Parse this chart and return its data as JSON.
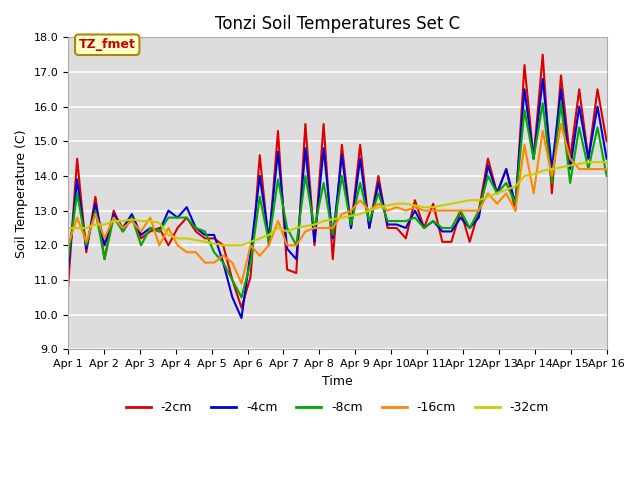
{
  "title": "Tonzi Soil Temperatures Set C",
  "xlabel": "Time",
  "ylabel": "Soil Temperature (C)",
  "ylim": [
    9.0,
    18.0
  ],
  "yticks": [
    9.0,
    10.0,
    11.0,
    12.0,
    13.0,
    14.0,
    15.0,
    16.0,
    17.0,
    18.0
  ],
  "xtick_labels": [
    "Apr 1",
    "Apr 2",
    "Apr 3",
    "Apr 4",
    "Apr 5",
    "Apr 6",
    "Apr 7",
    "Apr 8",
    "Apr 9",
    "Apr 10",
    "Apr 11",
    "Apr 12",
    "Apr 13",
    "Apr 14",
    "Apr 15",
    "Apr 16"
  ],
  "annotation_text": "TZ_fmet",
  "annotation_color": "#cc0000",
  "annotation_bg": "#ffffcc",
  "annotation_border": "#aa8800",
  "series_names": [
    "-2cm",
    "-4cm",
    "-8cm",
    "-16cm",
    "-32cm"
  ],
  "series_colors": [
    "#dd0000",
    "#0000dd",
    "#00aa00",
    "#ff8800",
    "#cccc00"
  ],
  "cm2": [
    10.8,
    14.5,
    11.8,
    13.4,
    11.6,
    13.0,
    12.4,
    12.8,
    12.2,
    12.4,
    12.5,
    12.0,
    12.5,
    12.8,
    12.4,
    12.2,
    12.2,
    12.0,
    11.0,
    10.2,
    11.1,
    14.6,
    12.0,
    15.3,
    11.3,
    11.2,
    15.5,
    12.0,
    15.5,
    11.6,
    14.9,
    12.5,
    14.9,
    12.5,
    14.0,
    12.5,
    12.5,
    12.2,
    13.3,
    12.5,
    13.2,
    12.1,
    12.1,
    13.0,
    12.1,
    13.0,
    14.5,
    13.5,
    14.2,
    13.0,
    17.2,
    14.5,
    17.5,
    13.5,
    16.9,
    14.5,
    16.5,
    14.5,
    16.5,
    15.0
  ],
  "cm4": [
    11.3,
    13.9,
    11.9,
    13.2,
    12.0,
    12.9,
    12.5,
    12.9,
    12.3,
    12.5,
    12.4,
    13.0,
    12.8,
    13.1,
    12.5,
    12.3,
    12.3,
    11.5,
    10.5,
    9.9,
    11.8,
    14.0,
    12.2,
    14.7,
    11.9,
    11.6,
    14.8,
    12.1,
    14.8,
    12.2,
    14.6,
    12.5,
    14.5,
    12.5,
    13.8,
    12.6,
    12.6,
    12.5,
    13.0,
    12.5,
    12.7,
    12.4,
    12.4,
    12.8,
    12.5,
    12.8,
    14.3,
    13.5,
    14.2,
    13.2,
    16.5,
    14.5,
    16.8,
    14.2,
    16.5,
    14.2,
    16.0,
    14.5,
    16.0,
    14.5
  ],
  "cm8": [
    11.6,
    13.5,
    12.0,
    13.0,
    11.6,
    12.8,
    12.4,
    12.8,
    12.0,
    12.5,
    12.4,
    12.8,
    12.8,
    12.8,
    12.5,
    12.4,
    11.8,
    11.5,
    11.0,
    10.5,
    11.5,
    13.4,
    12.1,
    13.9,
    12.5,
    12.0,
    14.0,
    12.5,
    13.8,
    12.3,
    14.0,
    12.6,
    13.8,
    12.7,
    13.5,
    12.7,
    12.7,
    12.7,
    12.8,
    12.5,
    12.7,
    12.5,
    12.5,
    13.0,
    12.5,
    13.0,
    14.0,
    13.5,
    13.8,
    13.2,
    15.9,
    14.5,
    16.1,
    13.8,
    16.1,
    13.8,
    15.4,
    14.2,
    15.4,
    14.0
  ],
  "cm16": [
    12.0,
    12.8,
    12.1,
    12.9,
    12.2,
    12.8,
    12.5,
    12.7,
    12.4,
    12.8,
    12.0,
    12.5,
    12.0,
    11.8,
    11.8,
    11.5,
    11.5,
    11.7,
    11.5,
    10.9,
    12.0,
    11.7,
    12.0,
    12.7,
    12.0,
    12.0,
    12.4,
    12.5,
    12.5,
    12.5,
    12.9,
    13.0,
    13.3,
    13.0,
    13.2,
    13.0,
    13.1,
    13.0,
    13.1,
    13.0,
    13.0,
    13.0,
    13.0,
    13.0,
    13.0,
    13.0,
    13.5,
    13.2,
    13.5,
    13.0,
    14.9,
    13.5,
    15.3,
    14.0,
    15.5,
    14.5,
    14.2,
    14.2,
    14.2,
    14.2
  ],
  "cm32": [
    12.5,
    12.5,
    12.5,
    12.6,
    12.6,
    12.7,
    12.7,
    12.75,
    12.7,
    12.7,
    12.65,
    12.3,
    12.2,
    12.2,
    12.15,
    12.1,
    12.05,
    12.0,
    12.0,
    12.0,
    12.1,
    12.2,
    12.3,
    12.5,
    12.4,
    12.5,
    12.55,
    12.6,
    12.7,
    12.75,
    12.8,
    12.85,
    12.9,
    13.0,
    13.1,
    13.15,
    13.2,
    13.2,
    13.15,
    13.1,
    13.1,
    13.15,
    13.2,
    13.25,
    13.3,
    13.3,
    13.4,
    13.5,
    13.6,
    13.7,
    14.0,
    14.05,
    14.15,
    14.2,
    14.25,
    14.3,
    14.35,
    14.4,
    14.4,
    14.4
  ],
  "n_points": 60,
  "x_range": [
    0,
    15
  ],
  "bg_color": "#dddddd",
  "grid_color": "#ffffff",
  "title_fontsize": 12,
  "tick_fontsize": 8,
  "axis_fontsize": 9,
  "linewidth": 1.5
}
